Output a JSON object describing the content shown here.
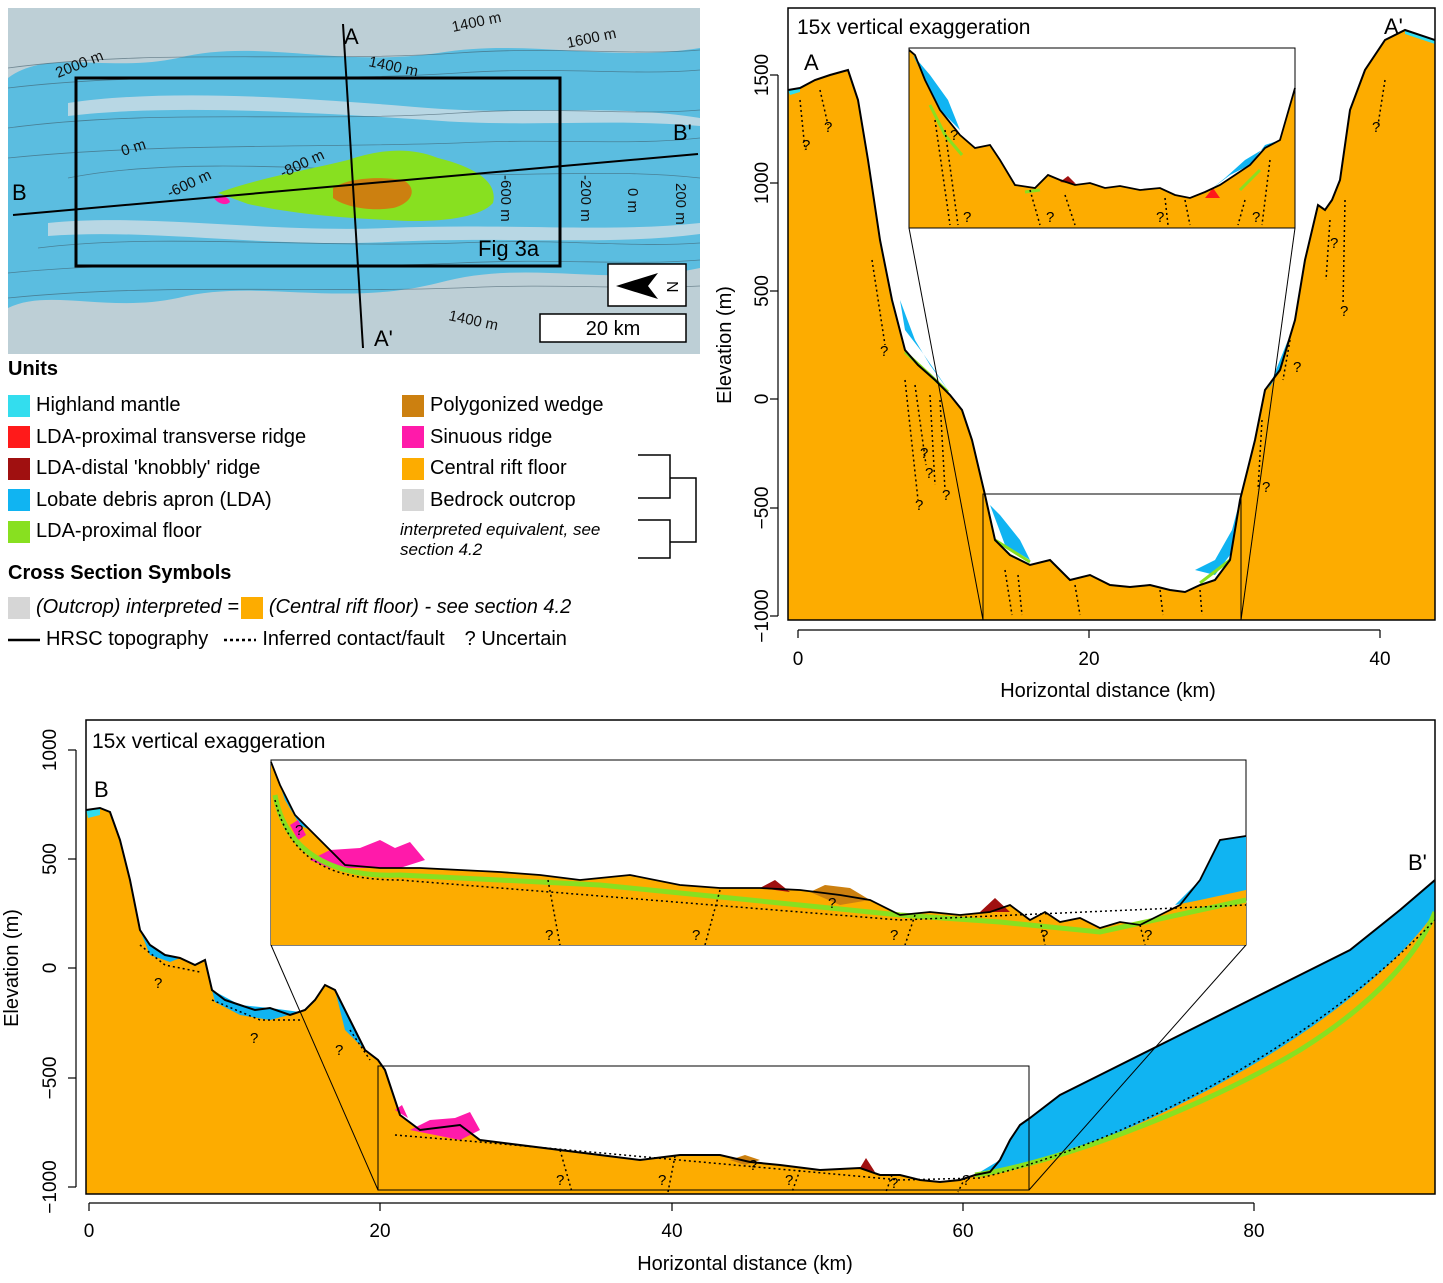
{
  "colors": {
    "highland_mantle": "#33ddee",
    "lda_proximal_transverse_ridge": "#ff1a1a",
    "lda_distal_knobbly_ridge": "#a01010",
    "lobate_debris_apron": "#10b4f2",
    "lda_proximal_floor": "#88e020",
    "polygonized_wedge": "#cc8010",
    "sinuous_ridge": "#ff1aaa",
    "central_rift_floor": "#fdac00",
    "bedrock_outcrop": "#d6d6d6",
    "map_background": "#5bbde0"
  },
  "map": {
    "contour_labels": [
      "1400 m",
      "1600 m",
      "2000 m",
      "1400 m",
      "0 m",
      "-600 m",
      "-800 m",
      "-600 m",
      "-200 m",
      "0 m",
      "200 m",
      "1400 m"
    ],
    "endpoint_A": "A",
    "endpoint_A_prime": "A'",
    "endpoint_B": "B",
    "endpoint_B_prime": "B'",
    "fig_label": "Fig 3a",
    "north_label": "N",
    "scale_label": "20 km"
  },
  "legend": {
    "units_title": "Units",
    "units": [
      {
        "label": "Highland mantle",
        "color_key": "highland_mantle"
      },
      {
        "label": "LDA-proximal transverse ridge",
        "color_key": "lda_proximal_transverse_ridge"
      },
      {
        "label": "LDA-distal 'knobbly' ridge",
        "color_key": "lda_distal_knobbly_ridge"
      },
      {
        "label": "Lobate debris apron (LDA)",
        "color_key": "lobate_debris_apron"
      },
      {
        "label": "LDA-proximal floor",
        "color_key": "lda_proximal_floor"
      },
      {
        "label": "Polygonized wedge",
        "color_key": "polygonized_wedge"
      },
      {
        "label": "Sinuous ridge",
        "color_key": "sinuous_ridge"
      },
      {
        "label": "Central rift floor",
        "color_key": "central_rift_floor"
      },
      {
        "label": "Bedrock outcrop",
        "color_key": "bedrock_outcrop"
      }
    ],
    "interpreted_note": "interpreted equivalent, see section 4.2",
    "symbols_title": "Cross Section Symbols",
    "symbol_outcrop_text": "(Outcrop) interpreted =",
    "symbol_rift_text": "(Central rift floor) - see section 4.2",
    "symbol_hrsc": "HRSC topography",
    "symbol_inferred": "Inferred contact/fault",
    "symbol_uncertain": "? Uncertain"
  },
  "section_a": {
    "exaggeration_label": "15x vertical exaggeration",
    "start_label": "A",
    "end_label": "A'",
    "xlabel": "Horizontal distance (km)",
    "ylabel": "Elevation (m)",
    "x_ticks": [
      "0",
      "20",
      "40"
    ],
    "y_ticks": [
      "1500",
      "1000",
      "500",
      "0",
      "−500",
      "−1000"
    ],
    "uncertain_marker": "?"
  },
  "section_b": {
    "exaggeration_label": "15x vertical exaggeration",
    "start_label": "B",
    "end_label": "B'",
    "xlabel": "Horizontal distance (km)",
    "ylabel": "Elevation (m)",
    "x_ticks": [
      "0",
      "20",
      "40",
      "60",
      "80"
    ],
    "y_ticks": [
      "1000",
      "500",
      "0",
      "−500",
      "−1000"
    ],
    "uncertain_marker": "?"
  }
}
